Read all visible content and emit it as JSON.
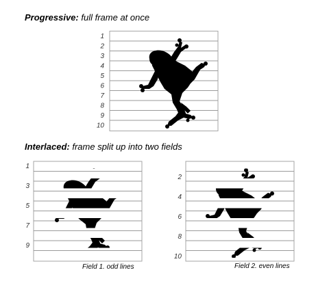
{
  "progressive": {
    "title_bold": "Progressive:",
    "title_rest": " full frame at once",
    "line_numbers": [
      "1",
      "2",
      "3",
      "4",
      "5",
      "6",
      "7",
      "8",
      "9",
      "10"
    ]
  },
  "interlaced": {
    "title_bold": "Interlaced:",
    "title_rest": " frame split up into two fields",
    "field1": {
      "line_numbers": [
        "1",
        "3",
        "5",
        "7",
        "9"
      ],
      "caption": "Field 1. odd lines"
    },
    "field2": {
      "line_numbers": [
        "2",
        "4",
        "6",
        "8",
        "10"
      ],
      "caption": "Field 2. even lines"
    }
  },
  "colors": {
    "silhouette": "#000000",
    "grid_line": "#9a9a9a",
    "border": "#a6a6a6"
  }
}
